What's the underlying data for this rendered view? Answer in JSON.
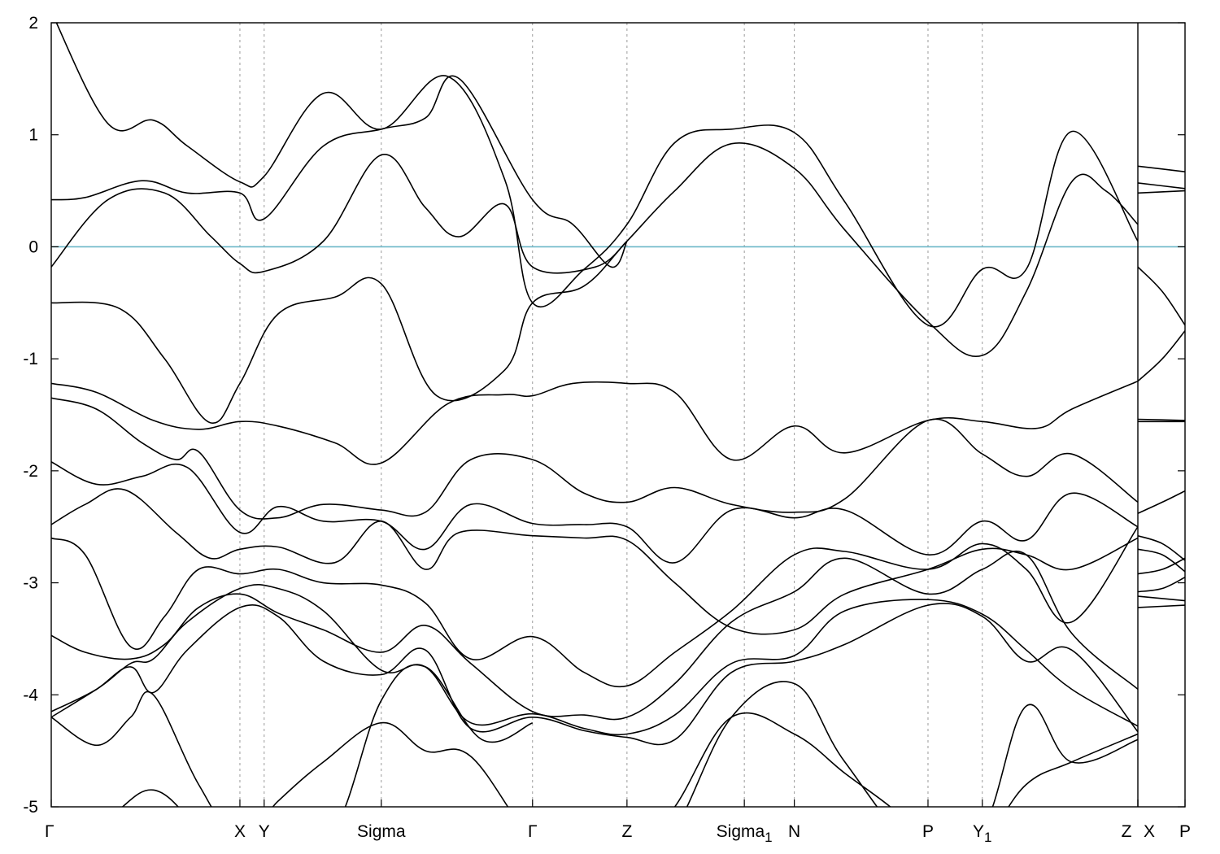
{
  "chart_data": {
    "type": "line",
    "title": "",
    "xlabel": "",
    "ylabel": "",
    "ylim": [
      -5,
      2
    ],
    "yticks": [
      2,
      1,
      0,
      -1,
      -2,
      -3,
      -4,
      -5
    ],
    "ytick_labels": [
      "2",
      "1",
      "0",
      "-1",
      "-2",
      "-3",
      "-4",
      "-5"
    ],
    "xlim": [
      0,
      1
    ],
    "fermi_level": 0,
    "colors": {
      "bands": "#000000",
      "fermi": "#6bb7c8",
      "kpoint_lines": "#9a9a9a"
    },
    "kpoints": [
      {
        "label": "Γ",
        "sub": "",
        "x": 0.0,
        "dashed": false
      },
      {
        "label": "X",
        "sub": "",
        "x": 0.1664,
        "dashed": true
      },
      {
        "label": "Y",
        "sub": "",
        "x": 0.1878,
        "dashed": true
      },
      {
        "label": "Sigma",
        "sub": "",
        "x": 0.2911,
        "dashed": true
      },
      {
        "label": "Γ",
        "sub": "",
        "x": 0.4245,
        "dashed": true
      },
      {
        "label": "Z",
        "sub": "",
        "x": 0.5078,
        "dashed": true
      },
      {
        "label": "Sigma",
        "sub": "1",
        "x": 0.6113,
        "dashed": true
      },
      {
        "label": "N",
        "sub": "",
        "x": 0.6554,
        "dashed": true
      },
      {
        "label": "P",
        "sub": "",
        "x": 0.7733,
        "dashed": true
      },
      {
        "label": "Y",
        "sub": "1",
        "x": 0.8212,
        "dashed": true
      },
      {
        "label": "Z",
        "sub": "",
        "x": 0.9584,
        "dashed": false,
        "solid": true
      },
      {
        "label": "X",
        "sub": "",
        "x": 0.9584,
        "dashed": false,
        "offset": "right"
      },
      {
        "label": "P",
        "sub": "",
        "x": 1.0,
        "dashed": false
      }
    ],
    "series": [
      {
        "x": [
          0.0,
          0.03,
          0.08,
          0.12,
          0.1664,
          0.1878,
          0.24,
          0.2911,
          0.33,
          0.36,
          0.4245,
          0.46,
          0.4938,
          0.5078
        ],
        "y": [
          0.42,
          0.44,
          0.59,
          0.48,
          0.48,
          0.25,
          0.9,
          1.05,
          1.15,
          1.5,
          0.42,
          0.2,
          -0.18,
          0.05
        ]
      },
      {
        "x": [
          0.0,
          0.05,
          0.1,
          0.14,
          0.1664,
          0.1878,
          0.24,
          0.2911,
          0.33,
          0.36,
          0.4,
          0.4245,
          0.48,
          0.5078
        ],
        "y": [
          -0.18,
          0.42,
          0.48,
          0.1,
          -0.15,
          -0.22,
          0.05,
          0.82,
          0.35,
          0.09,
          0.38,
          -0.18,
          -0.18,
          0.05
        ]
      },
      {
        "x": [
          0.0,
          0.05,
          0.09,
          0.12,
          0.1664,
          0.1878,
          0.24,
          0.2911,
          0.35,
          0.4,
          0.4245,
          0.47,
          0.5078,
          0.55,
          0.6,
          0.6554,
          0.7,
          0.7733,
          0.8212,
          0.86,
          0.9,
          0.9584
        ],
        "y": [
          2.1,
          1.1,
          1.13,
          0.9,
          0.58,
          0.63,
          1.37,
          1.05,
          1.52,
          0.6,
          -0.5,
          -0.2,
          0.2,
          0.93,
          1.05,
          1.02,
          0.4,
          -0.7,
          -0.2,
          -0.2,
          1.03,
          0.05
        ]
      },
      {
        "x": [
          0.0,
          0.06,
          0.1,
          0.14,
          0.1664,
          0.2,
          0.25,
          0.2911,
          0.34,
          0.4,
          0.4245,
          0.47,
          0.5078,
          0.55,
          0.6,
          0.6554,
          0.7,
          0.7733,
          0.8212,
          0.86,
          0.9,
          0.93,
          0.9584
        ],
        "y": [
          -0.5,
          -0.55,
          -1.0,
          -1.57,
          -1.22,
          -0.6,
          -0.45,
          -0.33,
          -1.33,
          -1.1,
          -0.5,
          -0.35,
          0.05,
          0.5,
          0.92,
          0.7,
          0.15,
          -0.67,
          -0.97,
          -0.4,
          0.58,
          0.5,
          0.2
        ]
      },
      {
        "x": [
          0.0,
          0.04,
          0.09,
          0.13,
          0.1664,
          0.2,
          0.25,
          0.2911,
          0.35,
          0.4,
          0.4245,
          0.46,
          0.5078,
          0.55,
          0.6,
          0.6554,
          0.7,
          0.7733,
          0.8212,
          0.87,
          0.9,
          0.9584
        ],
        "y": [
          -1.22,
          -1.3,
          -1.55,
          -1.63,
          -1.56,
          -1.6,
          -1.75,
          -1.93,
          -1.4,
          -1.32,
          -1.33,
          -1.22,
          -1.22,
          -1.3,
          -1.9,
          -1.6,
          -1.84,
          -1.55,
          -1.56,
          -1.62,
          -1.45,
          -1.2
        ]
      },
      {
        "x": [
          0.0,
          0.04,
          0.08,
          0.11,
          0.13,
          0.1664,
          0.2,
          0.24,
          0.2911,
          0.33,
          0.37,
          0.4245,
          0.47,
          0.5078,
          0.55,
          0.6,
          0.6554,
          0.7,
          0.7733,
          0.8212,
          0.86,
          0.9,
          0.9584
        ],
        "y": [
          -1.35,
          -1.45,
          -1.75,
          -1.9,
          -1.83,
          -2.35,
          -2.42,
          -2.3,
          -2.35,
          -2.37,
          -1.9,
          -1.9,
          -2.2,
          -2.28,
          -2.15,
          -2.3,
          -2.37,
          -2.25,
          -1.55,
          -1.85,
          -2.05,
          -1.85,
          -2.28
        ]
      },
      {
        "x": [
          0.0,
          0.04,
          0.08,
          0.12,
          0.1664,
          0.2,
          0.24,
          0.2911,
          0.33,
          0.37,
          0.4245,
          0.47,
          0.5078,
          0.55,
          0.6,
          0.6554,
          0.7,
          0.7733,
          0.8212,
          0.86,
          0.9,
          0.9584
        ],
        "y": [
          -1.92,
          -2.12,
          -2.05,
          -1.97,
          -2.55,
          -2.32,
          -2.45,
          -2.45,
          -2.7,
          -2.3,
          -2.47,
          -2.48,
          -2.5,
          -2.82,
          -2.35,
          -2.42,
          -2.35,
          -2.75,
          -2.45,
          -2.62,
          -2.2,
          -2.5
        ]
      },
      {
        "x": [
          0.0,
          0.03,
          0.065,
          0.11,
          0.14,
          0.1664,
          0.2,
          0.25,
          0.2911,
          0.33,
          0.36,
          0.4245,
          0.47,
          0.5078,
          0.55,
          0.6,
          0.6554,
          0.7,
          0.7733,
          0.8212,
          0.86,
          0.9,
          0.9584
        ],
        "y": [
          -2.48,
          -2.3,
          -2.17,
          -2.55,
          -2.78,
          -2.7,
          -2.68,
          -2.82,
          -2.45,
          -2.88,
          -2.55,
          -2.58,
          -2.6,
          -2.62,
          -3.0,
          -3.4,
          -3.42,
          -3.1,
          -2.88,
          -2.7,
          -2.75,
          -2.88,
          -2.6
        ]
      },
      {
        "x": [
          0.0,
          0.03,
          0.07,
          0.1,
          0.13,
          0.1664,
          0.2,
          0.24,
          0.2911,
          0.33,
          0.37,
          0.4245,
          0.47,
          0.5078,
          0.55,
          0.6,
          0.6554,
          0.7,
          0.7733,
          0.8212,
          0.86,
          0.9,
          0.9584
        ],
        "y": [
          -2.6,
          -2.75,
          -3.57,
          -3.3,
          -2.88,
          -2.92,
          -2.88,
          -3.0,
          -3.02,
          -3.18,
          -3.68,
          -3.48,
          -3.8,
          -3.92,
          -3.62,
          -3.25,
          -2.75,
          -2.72,
          -2.88,
          -2.65,
          -2.88,
          -3.35,
          -2.5
        ]
      },
      {
        "x": [
          0.0,
          0.03,
          0.07,
          0.1,
          0.13,
          0.1664,
          0.2,
          0.24,
          0.2911,
          0.33,
          0.37,
          0.4245,
          0.47,
          0.5078,
          0.55,
          0.6,
          0.6554,
          0.7,
          0.7733,
          0.8212,
          0.86,
          0.9,
          0.9584
        ],
        "y": [
          -3.47,
          -3.62,
          -3.68,
          -3.55,
          -3.22,
          -3.1,
          -3.27,
          -3.42,
          -3.62,
          -3.38,
          -3.72,
          -4.15,
          -4.18,
          -4.2,
          -3.9,
          -3.35,
          -3.08,
          -2.78,
          -3.1,
          -2.88,
          -2.75,
          -3.45,
          -3.95
        ]
      },
      {
        "x": [
          0.0,
          0.04,
          0.07,
          0.09,
          0.12,
          0.1664,
          0.2,
          0.24,
          0.2911,
          0.33,
          0.37,
          0.4245,
          0.47,
          0.5078,
          0.55,
          0.6,
          0.6554,
          0.7,
          0.7733,
          0.8212,
          0.86,
          0.9,
          0.9584
        ],
        "y": [
          -4.15,
          -3.95,
          -3.72,
          -3.68,
          -3.35,
          -3.05,
          -3.05,
          -3.25,
          -3.78,
          -3.75,
          -4.25,
          -4.17,
          -4.3,
          -4.35,
          -4.18,
          -3.72,
          -3.65,
          -3.25,
          -3.15,
          -3.28,
          -3.6,
          -3.95,
          -4.28
        ]
      },
      {
        "x": [
          0.0,
          0.04,
          0.07,
          0.09,
          0.12,
          0.1664,
          0.2,
          0.24,
          0.2911,
          0.33,
          0.37,
          0.4245,
          0.47,
          0.5078,
          0.55,
          0.6,
          0.6554,
          0.7,
          0.7733,
          0.8212,
          0.86,
          0.9,
          0.9584
        ],
        "y": [
          -4.2,
          -3.95,
          -3.75,
          -3.98,
          -3.6,
          -3.22,
          -3.3,
          -3.7,
          -3.82,
          -3.6,
          -4.3,
          -4.2,
          -4.32,
          -4.38,
          -4.4,
          -3.8,
          -3.7,
          -3.55,
          -3.2,
          -3.3,
          -3.7,
          -3.6,
          -4.33
        ]
      },
      {
        "x": [
          0.0,
          0.04,
          0.07,
          0.09,
          0.13,
          0.1664,
          0.2,
          0.24,
          0.2911,
          0.33,
          0.37,
          0.4245,
          0.47,
          0.5078,
          0.55,
          0.6,
          0.6554,
          0.7,
          0.74,
          0.7733,
          0.8212,
          0.86,
          0.9,
          0.9584
        ],
        "y": [
          -4.2,
          -4.45,
          -4.2,
          -4.0,
          -4.8,
          -5.3,
          -4.95,
          -4.6,
          -4.25,
          -4.5,
          -4.55,
          -5.3,
          -5.6,
          -5.5,
          -5.0,
          -4.2,
          -4.35,
          -4.7,
          -5.0,
          -5.3,
          -5.2,
          -4.1,
          -4.6,
          -4.4
        ]
      },
      {
        "x": [
          0.0,
          0.05,
          0.09,
          0.13,
          0.1664,
          0.2,
          0.25,
          0.2911,
          0.33,
          0.38,
          0.4245
        ],
        "y": [
          -5.4,
          -5.1,
          -4.85,
          -5.2,
          -5.6,
          -5.5,
          -5.2,
          -4.05,
          -3.75,
          -4.4,
          -4.25
        ]
      },
      {
        "x": [
          0.5078,
          0.55,
          0.6,
          0.6554,
          0.7,
          0.7733,
          0.8212,
          0.86,
          0.9,
          0.9584
        ],
        "y": [
          -5.6,
          -5.2,
          -4.2,
          -3.9,
          -4.6,
          -5.5,
          -5.3,
          -4.8,
          -4.6,
          -4.35
        ]
      },
      {
        "x": [
          0.9584,
          1.0
        ],
        "y": [
          0.72,
          0.67
        ]
      },
      {
        "x": [
          0.9584,
          1.0
        ],
        "y": [
          0.57,
          0.52
        ]
      },
      {
        "x": [
          0.9584,
          1.0
        ],
        "y": [
          0.48,
          0.5
        ]
      },
      {
        "x": [
          0.9584,
          0.98,
          1.0
        ],
        "y": [
          -0.18,
          -0.4,
          -0.7
        ]
      },
      {
        "x": [
          0.9584,
          0.98,
          1.0
        ],
        "y": [
          -1.2,
          -1.0,
          -0.75
        ]
      },
      {
        "x": [
          0.9584,
          1.0
        ],
        "y": [
          -1.54,
          -1.55
        ]
      },
      {
        "x": [
          0.9584,
          1.0
        ],
        "y": [
          -1.56,
          -1.56
        ]
      },
      {
        "x": [
          0.9584,
          0.98,
          1.0
        ],
        "y": [
          -2.38,
          -2.28,
          -2.18
        ]
      },
      {
        "x": [
          0.9584,
          0.98,
          1.0
        ],
        "y": [
          -2.58,
          -2.65,
          -2.8
        ]
      },
      {
        "x": [
          0.9584,
          0.98,
          1.0
        ],
        "y": [
          -2.7,
          -2.75,
          -2.9
        ]
      },
      {
        "x": [
          0.9584,
          0.98,
          1.0
        ],
        "y": [
          -2.92,
          -2.88,
          -2.78
        ]
      },
      {
        "x": [
          0.9584,
          0.98,
          1.0
        ],
        "y": [
          -3.08,
          -3.05,
          -2.95
        ]
      },
      {
        "x": [
          0.9584,
          1.0
        ],
        "y": [
          -3.12,
          -3.16
        ]
      },
      {
        "x": [
          0.9584,
          1.0
        ],
        "y": [
          -3.22,
          -3.2
        ]
      }
    ]
  }
}
